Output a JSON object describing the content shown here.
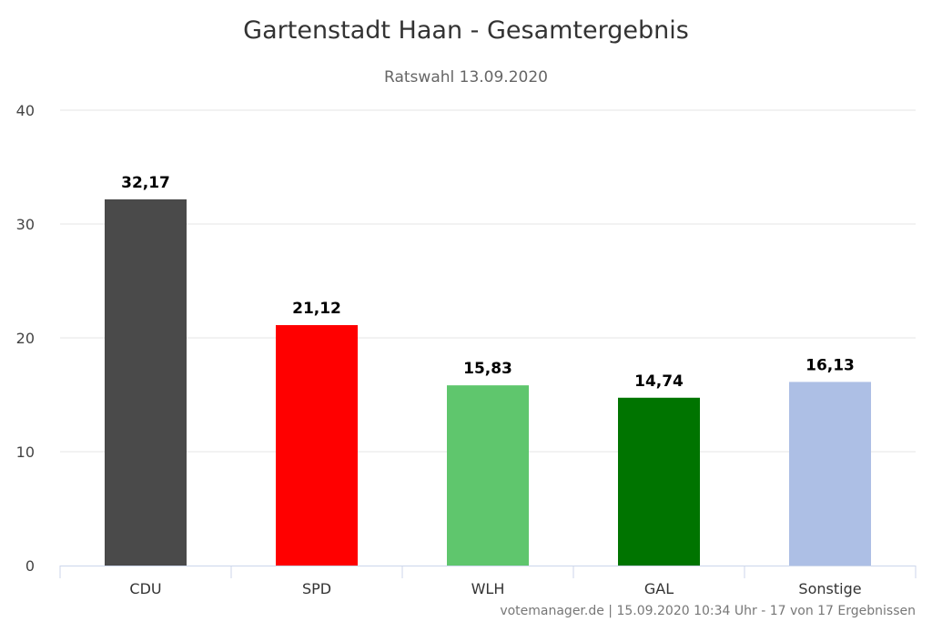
{
  "chart_data": {
    "type": "bar",
    "title": "Gartenstadt Haan - Gesamtergebnis",
    "subtitle": "Ratswahl 13.09.2020",
    "categories": [
      "CDU",
      "SPD",
      "WLH",
      "GAL",
      "Sonstige"
    ],
    "values": [
      32.17,
      21.12,
      15.83,
      14.74,
      16.13
    ],
    "data_labels": [
      "32,17",
      "21,12",
      "15,83",
      "14,74",
      "16,13"
    ],
    "colors": [
      "#4a4a4a",
      "#ff0000",
      "#5fc66d",
      "#007400",
      "#adbfe5"
    ],
    "ylim": [
      0,
      40
    ],
    "yticks": [
      0,
      10,
      20,
      30,
      40
    ],
    "xlabel": "",
    "ylabel": "",
    "grid": true,
    "legend": "none"
  },
  "credits": "votemanager.de | 15.09.2020 10:34 Uhr - 17 von 17 Ergebnissen"
}
